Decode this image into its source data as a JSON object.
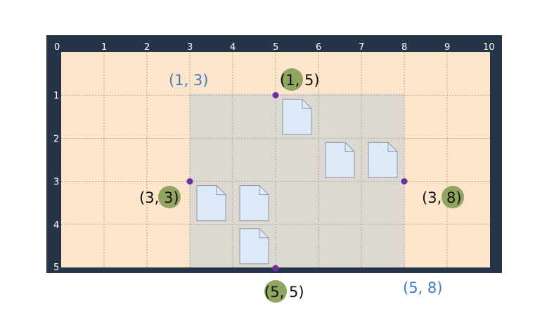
{
  "grid": {
    "columns": 10,
    "rows": 5,
    "x_ticks": [
      "0",
      "1",
      "2",
      "3",
      "4",
      "5",
      "6",
      "7",
      "8",
      "9",
      "10"
    ],
    "y_ticks": [
      "1",
      "2",
      "3",
      "4",
      "5"
    ],
    "colors": {
      "frame": "#253447",
      "background": "#fde5cc",
      "selection": "#ddd8d2",
      "gridline": "#a8a090",
      "point": "#6f2fa0",
      "highlight": "#8fa560",
      "label_dark": "#111111",
      "label_blue": "#3f7cbf",
      "doc_fill": "#dde9f6",
      "doc_stroke": "#8f9aa6"
    }
  },
  "selection": {
    "row_start": 1,
    "row_end": 5,
    "col_start": 3,
    "col_end": 8
  },
  "documents": [
    {
      "row": 1,
      "col": 5
    },
    {
      "row": 2,
      "col": 6
    },
    {
      "row": 2,
      "col": 7
    },
    {
      "row": 3,
      "col": 3
    },
    {
      "row": 3,
      "col": 4
    },
    {
      "row": 4,
      "col": 4
    }
  ],
  "points": [
    {
      "row": 1,
      "col": 5
    },
    {
      "row": 3,
      "col": 3
    },
    {
      "row": 3,
      "col": 8
    },
    {
      "row": 5,
      "col": 5
    }
  ],
  "labels": {
    "top_left": "(1, 3)",
    "top_mid": {
      "open": "(",
      "first": "1",
      "sep": ", ",
      "second": "5",
      "close": ")"
    },
    "left_mid": {
      "open": "(",
      "first": "3",
      "sep": ", ",
      "second": "3",
      "close": ")"
    },
    "right_mid": {
      "open": "(",
      "first": "3",
      "sep": ", ",
      "second": "8",
      "close": ")"
    },
    "bottom_mid": {
      "open": "(",
      "first": "5",
      "sep": ", ",
      "second": "5",
      "close": ")"
    },
    "bottom_right": "(5, 8)"
  }
}
